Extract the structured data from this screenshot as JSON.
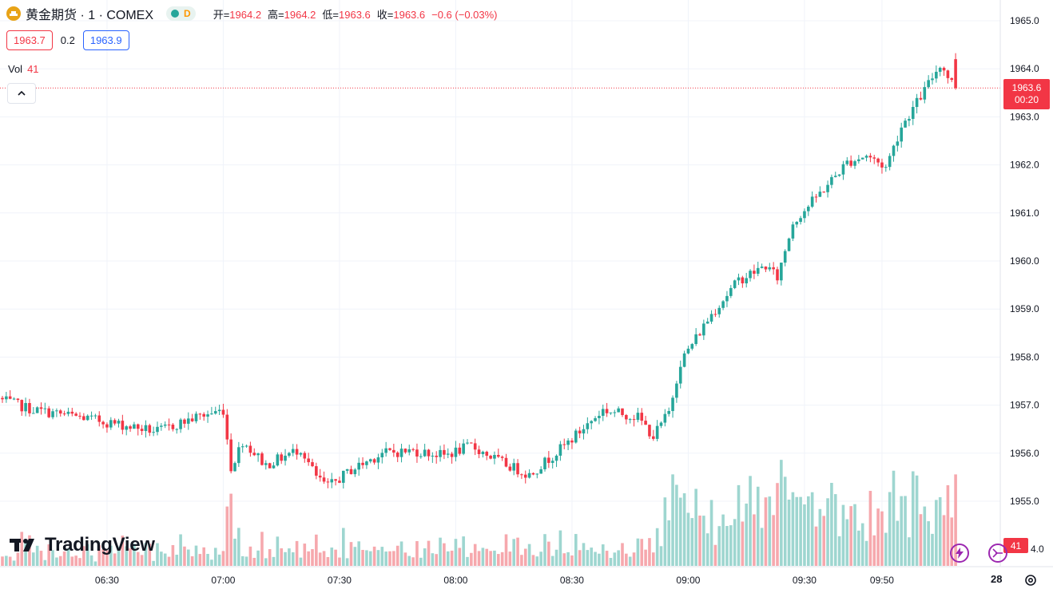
{
  "header": {
    "symbol": "黄金期货 · 1 · COMEX",
    "market_status_tag": "D",
    "ohlc": [
      {
        "k": "开=",
        "v": "1964.2"
      },
      {
        "k": "高=",
        "v": "1964.2"
      },
      {
        "k": "低=",
        "v": "1963.6"
      },
      {
        "k": "收=",
        "v": "1963.6"
      },
      {
        "k": "",
        "v": "−0.6 (−0.03%)"
      }
    ]
  },
  "quote": {
    "bid": "1963.7",
    "spread": "0.2",
    "ask": "1963.9"
  },
  "volume_legend": {
    "label": "Vol",
    "value": "41"
  },
  "brand": "TradingView",
  "last_price_label": {
    "price": "1963.6",
    "countdown": "00:20"
  },
  "last_volume_label": "41",
  "corner_label": "28",
  "colors": {
    "up": "#26a69a",
    "down": "#f23645",
    "vol_up": "#9ed6d0",
    "vol_down": "#f6a8ad"
  },
  "chart_data": {
    "type": "candlestick",
    "interval": "1 minute",
    "x_ticks": [
      "06:30",
      "07:00",
      "07:30",
      "08:00",
      "08:30",
      "09:00",
      "09:30",
      "09:50"
    ],
    "y_ticks": [
      "1955.0",
      "1956.0",
      "1957.0",
      "1958.0",
      "1959.0",
      "1960.0",
      "1961.0",
      "1962.0",
      "1963.0",
      "1964.0",
      "1965.0"
    ],
    "ylim": [
      1954.0,
      1965.3
    ],
    "last_price": 1963.6,
    "anchors": [
      [
        0,
        1957.1
      ],
      [
        8,
        1956.9
      ],
      [
        20,
        1956.75
      ],
      [
        40,
        1956.45
      ],
      [
        50,
        1956.75
      ],
      [
        57,
        1956.9
      ],
      [
        59,
        1955.7
      ],
      [
        62,
        1956.25
      ],
      [
        68,
        1955.75
      ],
      [
        77,
        1956.1
      ],
      [
        81,
        1955.5
      ],
      [
        84,
        1955.3
      ],
      [
        90,
        1955.65
      ],
      [
        98,
        1956.0
      ],
      [
        106,
        1956.05
      ],
      [
        114,
        1955.95
      ],
      [
        121,
        1956.15
      ],
      [
        129,
        1955.8
      ],
      [
        136,
        1955.55
      ],
      [
        145,
        1956.15
      ],
      [
        155,
        1956.9
      ],
      [
        164,
        1956.75
      ],
      [
        168,
        1956.35
      ],
      [
        172,
        1956.85
      ],
      [
        175,
        1957.9
      ],
      [
        183,
        1958.9
      ],
      [
        190,
        1959.6
      ],
      [
        197,
        1959.9
      ],
      [
        200,
        1959.65
      ],
      [
        204,
        1960.8
      ],
      [
        212,
        1961.5
      ],
      [
        218,
        1962.05
      ],
      [
        223,
        1962.2
      ],
      [
        228,
        1961.95
      ],
      [
        232,
        1962.8
      ],
      [
        238,
        1963.55
      ],
      [
        242,
        1964.1
      ],
      [
        246,
        1963.6
      ]
    ]
  }
}
